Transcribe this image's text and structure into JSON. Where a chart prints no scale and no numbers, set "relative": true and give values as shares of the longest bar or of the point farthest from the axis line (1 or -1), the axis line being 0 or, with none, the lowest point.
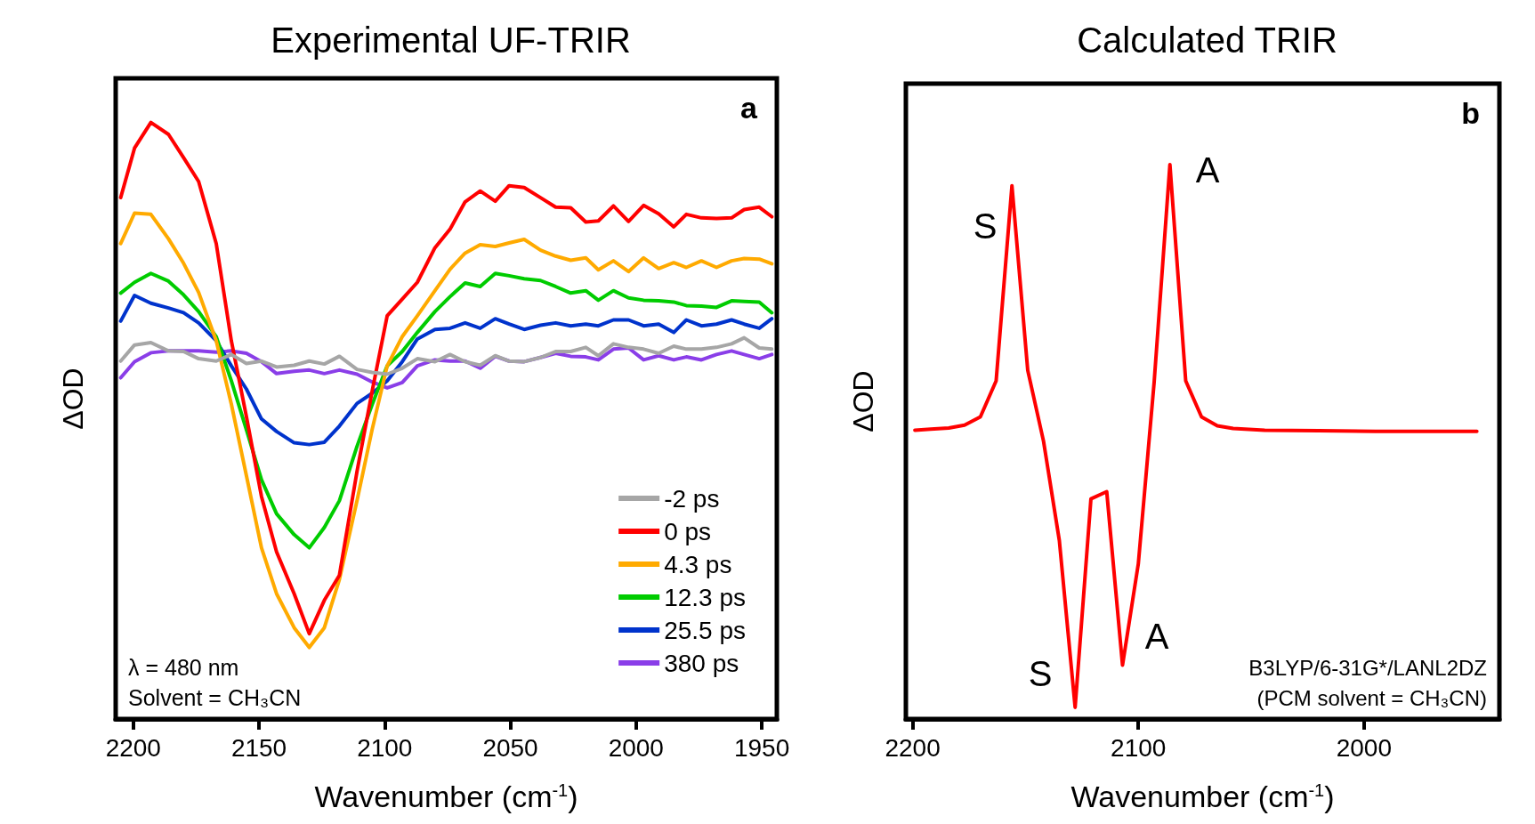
{
  "chart_data": [
    {
      "type": "line",
      "title": "Experimental UF-TRIR",
      "xlabel": "Wavenumber (cm$^{-1}$)",
      "ylabel": "ΔOD",
      "relative": true,
      "xlim": [
        2207,
        1944
      ],
      "xticks": [
        2200,
        2150,
        2100,
        2050,
        2000,
        1950
      ],
      "legend": "bottom right",
      "marker": "none",
      "line_style": "solid",
      "annotations": [
        "a",
        "λ = 480 nm",
        "Solvent = CH₃CN"
      ],
      "x": [
        2205,
        2199.5,
        2193,
        2186,
        2180,
        2174,
        2167,
        2161,
        2155,
        2149,
        2143,
        2136,
        2130,
        2124,
        2118,
        2111,
        2105,
        2099,
        2093,
        2087,
        2080,
        2074,
        2068,
        2062,
        2056,
        2050.5,
        2044.5,
        2038,
        2032,
        2026,
        2020,
        2015,
        2009,
        2003,
        1997,
        1991,
        1985,
        1980,
        1974,
        1968,
        1962,
        1957,
        1951,
        1946
      ],
      "series": [
        {
          "name": "-2 ps",
          "color": "#a6a6a6",
          "values": [
            0.6,
            0.627,
            0.631,
            0.617,
            0.616,
            0.604,
            0.6,
            0.611,
            0.596,
            0.6,
            0.59,
            0.593,
            0.6,
            0.595,
            0.608,
            0.586,
            0.581,
            0.578,
            0.588,
            0.604,
            0.599,
            0.611,
            0.599,
            0.593,
            0.609,
            0.6,
            0.599,
            0.606,
            0.616,
            0.616,
            0.623,
            0.609,
            0.629,
            0.623,
            0.62,
            0.613,
            0.625,
            0.62,
            0.62,
            0.623,
            0.629,
            0.639,
            0.622,
            0.62
          ]
        },
        {
          "name": "0 ps",
          "color": "#ff0000",
          "values": [
            0.874,
            0.957,
            1,
            0.98,
            0.941,
            0.901,
            0.797,
            0.634,
            0.507,
            0.373,
            0.28,
            0.21,
            0.143,
            0.199,
            0.241,
            0.415,
            0.549,
            0.676,
            0.704,
            0.732,
            0.79,
            0.821,
            0.867,
            0.885,
            0.868,
            0.894,
            0.891,
            0.874,
            0.858,
            0.857,
            0.833,
            0.835,
            0.86,
            0.834,
            0.861,
            0.847,
            0.825,
            0.846,
            0.84,
            0.839,
            0.84,
            0.854,
            0.858,
            0.842
          ]
        },
        {
          "name": "4.3 ps",
          "color": "#ffaa00",
          "values": [
            0.797,
            0.848,
            0.846,
            0.805,
            0.764,
            0.715,
            0.634,
            0.528,
            0.408,
            0.287,
            0.21,
            0.153,
            0.12,
            0.153,
            0.234,
            0.366,
            0.485,
            0.592,
            0.641,
            0.676,
            0.718,
            0.754,
            0.781,
            0.795,
            0.792,
            0.798,
            0.804,
            0.786,
            0.776,
            0.769,
            0.773,
            0.753,
            0.768,
            0.75,
            0.773,
            0.755,
            0.765,
            0.757,
            0.768,
            0.757,
            0.768,
            0.772,
            0.771,
            0.763
          ]
        },
        {
          "name": "12.3 ps",
          "color": "#00cc00",
          "values": [
            0.714,
            0.732,
            0.747,
            0.734,
            0.711,
            0.683,
            0.641,
            0.567,
            0.485,
            0.401,
            0.344,
            0.309,
            0.287,
            0.321,
            0.366,
            0.457,
            0.527,
            0.592,
            0.616,
            0.648,
            0.683,
            0.708,
            0.731,
            0.725,
            0.747,
            0.743,
            0.738,
            0.735,
            0.725,
            0.714,
            0.718,
            0.702,
            0.718,
            0.706,
            0.702,
            0.701,
            0.699,
            0.693,
            0.692,
            0.69,
            0.701,
            0.7,
            0.699,
            0.681
          ]
        },
        {
          "name": "25.5 ps",
          "color": "#0033cc",
          "values": [
            0.667,
            0.71,
            0.697,
            0.689,
            0.681,
            0.664,
            0.634,
            0.592,
            0.553,
            0.503,
            0.482,
            0.463,
            0.46,
            0.464,
            0.491,
            0.529,
            0.546,
            0.567,
            0.599,
            0.637,
            0.653,
            0.655,
            0.664,
            0.655,
            0.671,
            0.662,
            0.653,
            0.66,
            0.664,
            0.659,
            0.662,
            0.659,
            0.669,
            0.669,
            0.659,
            0.662,
            0.648,
            0.669,
            0.659,
            0.662,
            0.669,
            0.662,
            0.655,
            0.671
          ]
        },
        {
          "name": "380 ps",
          "color": "#8a3ee8",
          "values": [
            0.572,
            0.599,
            0.614,
            0.617,
            0.617,
            0.617,
            0.615,
            0.617,
            0.613,
            0.599,
            0.579,
            0.583,
            0.585,
            0.579,
            0.585,
            0.578,
            0.565,
            0.555,
            0.564,
            0.592,
            0.602,
            0.6,
            0.6,
            0.588,
            0.608,
            0.6,
            0.599,
            0.606,
            0.613,
            0.608,
            0.607,
            0.602,
            0.62,
            0.622,
            0.602,
            0.609,
            0.602,
            0.607,
            0.602,
            0.611,
            0.617,
            0.611,
            0.604,
            0.611
          ]
        }
      ]
    },
    {
      "type": "line",
      "title": "Calculated TRIR",
      "xlabel": "Wavenumber (cm$^{-1}$)",
      "ylabel": "ΔOD",
      "relative": true,
      "xlim": [
        2203,
        1940
      ],
      "xticks": [
        2200,
        2100,
        2000
      ],
      "marker": "none",
      "line_style": "solid",
      "annotations": [
        "S",
        "A",
        "S",
        "A",
        "b",
        "B3LYP/6-31G*/LANL2DZ",
        "(PCM solvent = CH₃CN)"
      ],
      "x": [
        2199,
        2192,
        2184,
        2177,
        2170,
        2163,
        2156,
        2149,
        2142,
        2135,
        2128,
        2121,
        2114,
        2107,
        2100,
        2093,
        2086,
        2079,
        2072,
        2065,
        2058,
        2044,
        2020,
        1995,
        1969,
        1950
      ],
      "series": [
        {
          "color": "#ff0000",
          "values": [
            0.521,
            0.523,
            0.525,
            0.53,
            0.545,
            0.61,
            0.962,
            0.629,
            0.501,
            0.322,
            0.021,
            0.397,
            0.41,
            0.097,
            0.28,
            0.607,
            1,
            0.61,
            0.545,
            0.529,
            0.524,
            0.521,
            0.52,
            0.519,
            0.519,
            0.519
          ]
        }
      ]
    }
  ]
}
